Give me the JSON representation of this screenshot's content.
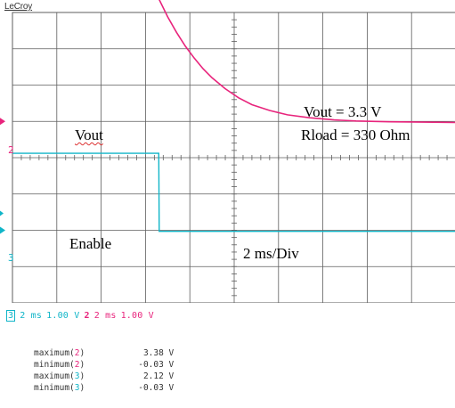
{
  "header": {
    "logo": "LeCroy"
  },
  "colors": {
    "ch2": "#e8247c",
    "ch3": "#10b5c8",
    "grid": "#5e5e5e",
    "background": "#ffffff"
  },
  "channels": {
    "ch2_marker": "2",
    "ch3_marker": "3"
  },
  "annotations": {
    "vout_label": "Vout",
    "enable_label": "Enable",
    "timebase_label": "2 ms/Div",
    "vout_value": "Vout  = 3.3 V",
    "rload_value": "Rload = 330 Ohm"
  },
  "status_bar": {
    "ch3_num": "3",
    "ch3_time": "2 ms",
    "ch3_volts": "1.00 V",
    "ch2_num": "2",
    "ch2_time": "2 ms",
    "ch2_volts": "1.00 V"
  },
  "measurements": [
    {
      "label": "maximum(",
      "ch": "2",
      "close": ")",
      "value": "3.38 V",
      "color": "#e8247c"
    },
    {
      "label": "minimum(",
      "ch": "2",
      "close": ")",
      "value": "-0.03 V",
      "color": "#e8247c"
    },
    {
      "label": "maximum(",
      "ch": "3",
      "close": ")",
      "value": "2.12 V",
      "color": "#10b5c8"
    },
    {
      "label": "minimum(",
      "ch": "3",
      "close": ")",
      "value": "-0.03 V",
      "color": "#10b5c8"
    }
  ],
  "chart_data": {
    "type": "line",
    "title": "",
    "xlabel": "",
    "ylabel": "",
    "x_unit": "ms",
    "x_per_div": 2,
    "xlim": [
      0,
      20
    ],
    "y_per_div": 1.0,
    "grid": true,
    "series": [
      {
        "channel": "2",
        "volts_per_div": 1.0,
        "ground_div": 5.0,
        "x": [
          0,
          1,
          2,
          3,
          4,
          5,
          6.6,
          7.0,
          7.4,
          7.8,
          8.2,
          8.6,
          9.0,
          9.6,
          10.2,
          10.8,
          11.6,
          12.4,
          13.4,
          14.5,
          15.5,
          17,
          18.5,
          20
        ],
        "y": [
          3.38,
          3.38,
          3.38,
          3.38,
          3.38,
          3.38,
          3.38,
          2.88,
          2.45,
          2.07,
          1.74,
          1.45,
          1.2,
          0.9,
          0.65,
          0.46,
          0.3,
          0.18,
          0.1,
          0.04,
          0.01,
          -0.01,
          -0.02,
          -0.03
        ]
      },
      {
        "channel": "3",
        "volts_per_div": 1.0,
        "ground_div": 2.0,
        "x": [
          0,
          2,
          4,
          6.6,
          6.62,
          8,
          10,
          12,
          14,
          16,
          18,
          20
        ],
        "y": [
          2.12,
          2.12,
          2.12,
          2.12,
          -0.03,
          -0.03,
          -0.03,
          -0.03,
          -0.03,
          -0.03,
          -0.03,
          -0.03
        ]
      }
    ]
  }
}
